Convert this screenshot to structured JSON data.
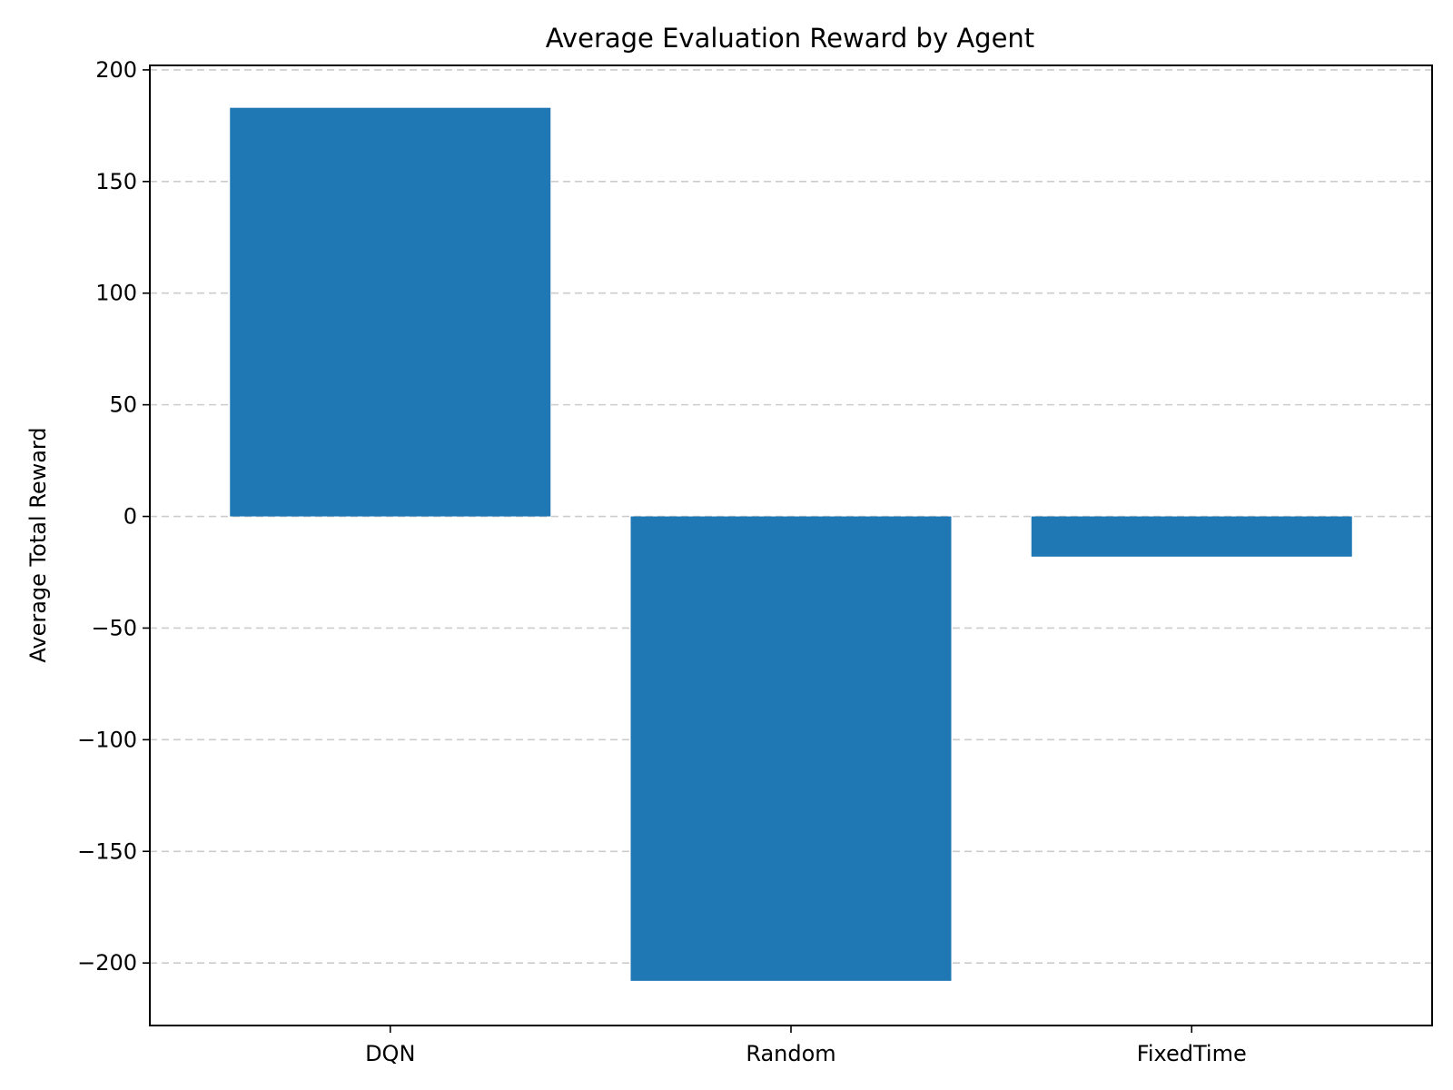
{
  "chart_data": {
    "type": "bar",
    "title": "Average Evaluation Reward by Agent",
    "xlabel": "",
    "ylabel": "Average Total Reward",
    "categories": [
      "DQN",
      "Random",
      "FixedTime"
    ],
    "values": [
      183,
      -208,
      -18
    ],
    "ylim": [
      -228,
      202
    ],
    "yticks": [
      200,
      150,
      100,
      50,
      0,
      -50,
      -100,
      -150,
      -200
    ],
    "ytick_labels": [
      "200",
      "150",
      "100",
      "50",
      "0",
      "−50",
      "−100",
      "−150",
      "−200"
    ],
    "grid": "y-dashed",
    "legend": "none",
    "colors": {
      "bar": "#1f77b4",
      "grid": "#cccccc"
    }
  }
}
